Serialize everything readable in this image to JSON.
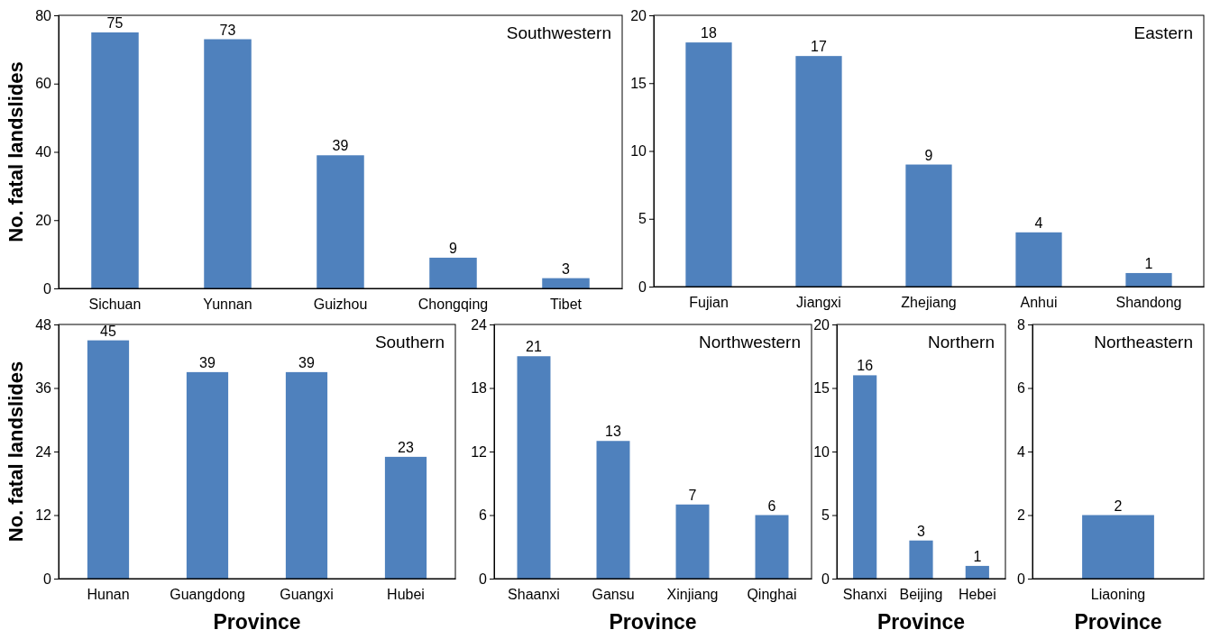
{
  "chart_data": [
    {
      "type": "bar",
      "title": "Southwestern",
      "ylabel": "No. fatal landslides",
      "categories": [
        "Sichuan",
        "Yunnan",
        "Guizhou",
        "Chongqing",
        "Tibet"
      ],
      "values": [
        75,
        73,
        39,
        9,
        3
      ],
      "color": "#4f81bd",
      "ylim": [
        0,
        80
      ],
      "yticks": [
        0,
        20,
        40,
        60,
        80
      ],
      "data_labels": true
    },
    {
      "type": "bar",
      "title": "Eastern",
      "categories": [
        "Fujian",
        "Jiangxi",
        "Zhejiang",
        "Anhui",
        "Shandong"
      ],
      "values": [
        18,
        17,
        9,
        4,
        1
      ],
      "color": "#4f81bd",
      "ylim": [
        0,
        20
      ],
      "yticks": [
        0,
        5,
        10,
        15,
        20
      ],
      "data_labels": true
    },
    {
      "type": "bar",
      "title": "Southern",
      "ylabel": "No. fatal landslides",
      "xlabel": "Province",
      "categories": [
        "Hunan",
        "Guangdong",
        "Guangxi",
        "Hubei"
      ],
      "values": [
        45,
        39,
        39,
        23
      ],
      "color": "#4f81bd",
      "ylim": [
        0,
        48
      ],
      "yticks": [
        0,
        12,
        24,
        36,
        48
      ],
      "data_labels": true
    },
    {
      "type": "bar",
      "title": "Northwestern",
      "xlabel": "Province",
      "categories": [
        "Shaanxi",
        "Gansu",
        "Xinjiang",
        "Qinghai"
      ],
      "values": [
        21,
        13,
        7,
        6
      ],
      "color": "#4f81bd",
      "ylim": [
        0,
        24
      ],
      "yticks": [
        0,
        6,
        12,
        18,
        24
      ],
      "data_labels": true
    },
    {
      "type": "bar",
      "title": "Northern",
      "xlabel": "Province",
      "categories": [
        "Shanxi",
        "Beijing",
        "Hebei"
      ],
      "values": [
        16,
        3,
        1
      ],
      "color": "#4f81bd",
      "ylim": [
        0,
        20
      ],
      "yticks": [
        0,
        5,
        10,
        15,
        20
      ],
      "data_labels": true
    },
    {
      "type": "bar",
      "title": "Northeastern",
      "xlabel": "Province",
      "categories": [
        "Liaoning"
      ],
      "values": [
        2
      ],
      "color": "#4f81bd",
      "ylim": [
        0,
        8
      ],
      "yticks": [
        0,
        2,
        4,
        6,
        8
      ],
      "data_labels": true
    }
  ]
}
